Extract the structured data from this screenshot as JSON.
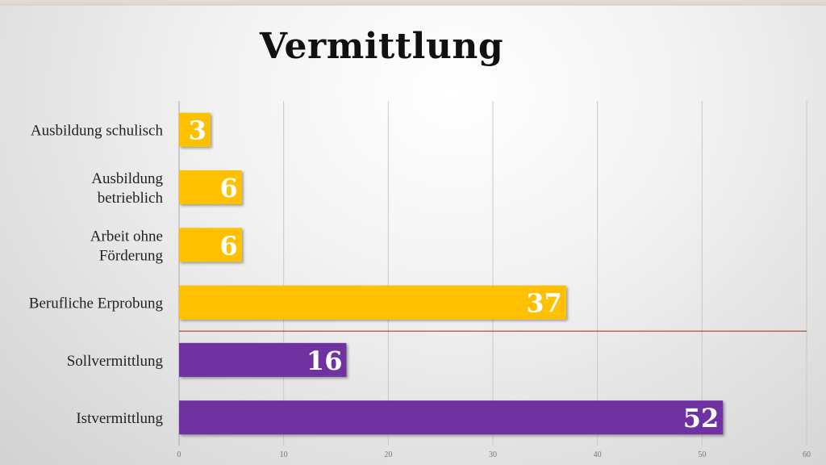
{
  "title": "Vermittlung",
  "colors": {
    "yellow": "#FFC000",
    "purple": "#7030A0",
    "divider": "#A0432A"
  },
  "chart_data": {
    "type": "bar",
    "orientation": "horizontal",
    "title": "Vermittlung",
    "categories": [
      "Ausbildung schulisch",
      "Ausbildung betrieblich",
      "Arbeit ohne Förderung",
      "Berufliche Erprobung",
      "Sollvermittlung",
      "Istvermittlung"
    ],
    "category_lines": [
      [
        "Ausbildung schulisch"
      ],
      [
        "Ausbildung",
        "betrieblich"
      ],
      [
        "Arbeit ohne",
        "Förderung"
      ],
      [
        "Berufliche Erprobung"
      ],
      [
        "Sollvermittlung"
      ],
      [
        "Istvermittlung"
      ]
    ],
    "values": [
      3,
      6,
      6,
      37,
      16,
      52
    ],
    "bar_colors": [
      "yellow",
      "yellow",
      "yellow",
      "yellow",
      "purple",
      "purple"
    ],
    "xlim": [
      0,
      60
    ],
    "xticks": [
      0,
      10,
      20,
      30,
      40,
      50,
      60
    ],
    "grid": "vertical",
    "legend": "none",
    "data_labels": "inside-end",
    "separator_after_category": 3
  }
}
